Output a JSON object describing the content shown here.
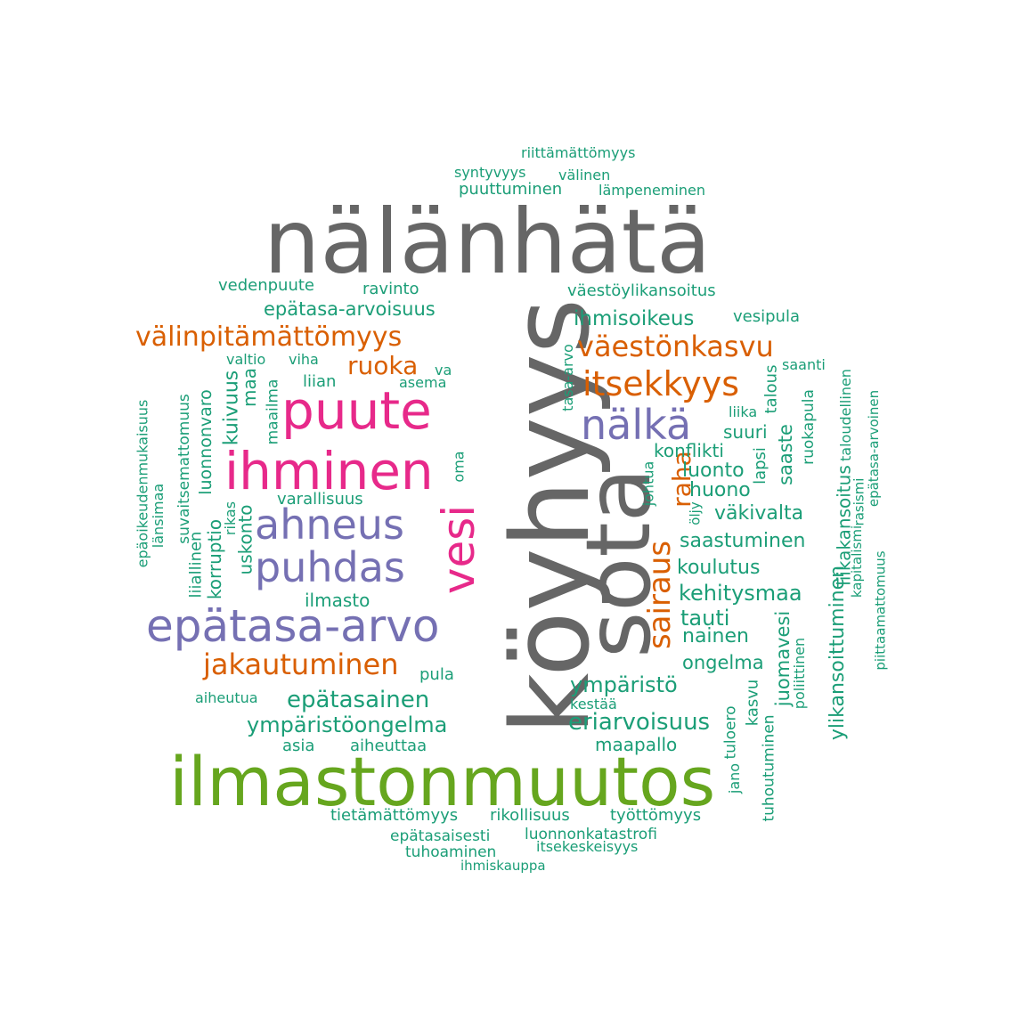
{
  "colors": {
    "gray": "#666666",
    "green": "#66a61e",
    "orange": "#d95f02",
    "pink": "#e7298a",
    "purple": "#7570b3",
    "teal": "#1b9e77"
  },
  "words": {
    "nalanhata": "nälänhätä",
    "koyhyys": "köyhyys",
    "sota": "sota",
    "ilmastonmuutos": "ilmastonmuutos",
    "puute": "puute",
    "ihminen": "ihminen",
    "vesi": "vesi",
    "ahneus": "ahneus",
    "puhdas": "puhdas",
    "epatasa_arvo": "epätasa-arvo",
    "nalka": "nälkä",
    "valinpitamattomyys": "välinpitämättömyys",
    "vaestonkasvu": "väestönkasvu",
    "itsekkyys": "itsekkyys",
    "sairaus": "sairaus",
    "raha": "raha",
    "jakautuminen": "jakautuminen",
    "ruoka": "ruoka",
    "riittamattomyys": "riittämättömyys",
    "syntyvyys": "syntyvyys",
    "valinen": "välinen",
    "puuttuminen": "puuttuminen",
    "lampeneminen": "lämpeneminen",
    "vedenpuute": "vedenpuute",
    "ravinto": "ravinto",
    "vaestoylikansoitus": "väestöylikansoitus",
    "epatasa_arvoisuus": "epätasa-arvoisuus",
    "ihmisoikeus": "ihmisoikeus",
    "vesipula": "vesipula",
    "valtio": "valtio",
    "viha": "viha",
    "va": "va",
    "liian": "liian",
    "asema": "asema",
    "saanti": "saanti",
    "tasa_arvo": "tasa-arvo",
    "talous": "talous",
    "liika": "liika",
    "suuri": "suuri",
    "konflikti": "konflikti",
    "luonto": "luonto",
    "huono": "huono",
    "vakivalta": "väkivalta",
    "saastuminen": "saastuminen",
    "koulutus": "koulutus",
    "kehitysmaa": "kehitysmaa",
    "tauti": "tauti",
    "nainen": "nainen",
    "ongelma": "ongelma",
    "ymparisto": "ympäristö",
    "kestaa": "kestää",
    "eriarvoisuus": "eriarvoisuus",
    "maapallo": "maapallo",
    "epatasainen": "epätasainen",
    "ymparistoongelma": "ympäristöongelma",
    "asia": "asia",
    "aiheuttaa": "aiheuttaa",
    "aiheutua": "aiheutua",
    "pula": "pula",
    "ilmasto": "ilmasto",
    "varallisuus": "varallisuus",
    "oma": "oma",
    "tietamattomyys": "tietämättömyys",
    "rikollisuus": "rikollisuus",
    "tyottomyys": "työttömyys",
    "epatasaisesti": "epätasaisesti",
    "luonnonkatastrofi": "luonnonkatastrofi",
    "tuhoaminen": "tuhoaminen",
    "itsekeskeisyys": "itsekeskeisyys",
    "ihmiskauppa": "ihmiskauppa",
    "epaoikeudenmukaisuus": "epäoikeudenmukaisuus",
    "lansimaa": "länsimaa",
    "suvaitsemattomuus": "suvaitsemattomuus",
    "luonnonvaro": "luonnonvaro",
    "kuivuus": "kuivuus",
    "maa": "maa",
    "maailma": "maailma",
    "liiallinen": "liiallinen",
    "korruptio": "korruptio",
    "rikas": "rikas",
    "uskonto": "uskonto",
    "johtua": "johtua",
    "oljy": "öljy",
    "lapsi": "lapsi",
    "saaste": "saaste",
    "ruokapula": "ruokapula",
    "juomavesi": "juomavesi",
    "kasvu": "kasvu",
    "tuloero": "tuloero",
    "jano": "jano",
    "tuhoutuminen": "tuhoutuminen",
    "poliittinen": "poliittinen",
    "ylikansoittuminen": "ylikansoittuminen",
    "liikakansoitus": "liikakansoitus",
    "kapitalismi": "kapitalismi",
    "rasismi": "rasismi",
    "taloudellinen": "taloudellinen",
    "epatasa_arvoinen": "epätasa-arvoinen",
    "piittaamattomuus": "piittaamattomuus"
  }
}
